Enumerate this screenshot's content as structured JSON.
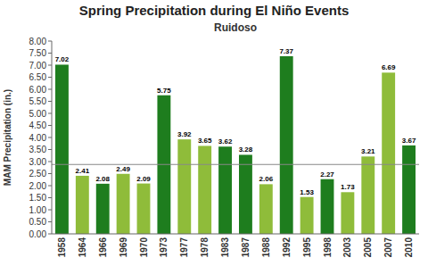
{
  "chart_data": {
    "type": "bar",
    "title": "Spring Precipitation during El Niño Events",
    "subtitle": "Ruidoso",
    "y_label": "MAM  Precipitation (in.)",
    "categories": [
      "1958",
      "1964",
      "1966",
      "1969",
      "1970",
      "1973",
      "1977",
      "1978",
      "1983",
      "1987",
      "1988",
      "1992",
      "1995",
      "1998",
      "2003",
      "2005",
      "2007",
      "2010"
    ],
    "values": [
      7.02,
      2.41,
      2.08,
      2.49,
      2.09,
      5.75,
      3.92,
      3.65,
      3.62,
      3.28,
      2.06,
      7.37,
      1.53,
      2.27,
      1.73,
      3.21,
      6.69,
      3.67
    ],
    "colors": [
      "#1e7d1e",
      "#8fbc3a",
      "#1e7d1e",
      "#8fbc3a",
      "#8fbc3a",
      "#1e7d1e",
      "#8fbc3a",
      "#8fbc3a",
      "#1e7d1e",
      "#1e7d1e",
      "#8fbc3a",
      "#1e7d1e",
      "#8fbc3a",
      "#1e7d1e",
      "#8fbc3a",
      "#8fbc3a",
      "#8fbc3a",
      "#1e7d1e"
    ],
    "reference_line": 2.88,
    "ylim": [
      0.0,
      8.0
    ],
    "yticks": [
      {
        "value": 0.0,
        "label": "0.00"
      },
      {
        "value": 0.5,
        "label": "0.50"
      },
      {
        "value": 1.0,
        "label": "1.00"
      },
      {
        "value": 1.5,
        "label": "1.50"
      },
      {
        "value": 2.0,
        "label": "2.00"
      },
      {
        "value": 2.5,
        "label": "2.50"
      },
      {
        "value": 3.0,
        "label": "3.00"
      },
      {
        "value": 3.5,
        "label": "3.50"
      },
      {
        "value": 4.0,
        "label": "4.00"
      },
      {
        "value": 4.5,
        "label": "4.50"
      },
      {
        "value": 5.0,
        "label": "5.00"
      },
      {
        "value": 5.5,
        "label": "5.50"
      },
      {
        "value": 6.0,
        "label": "6.00"
      },
      {
        "value": 6.5,
        "label": "6.50"
      },
      {
        "value": 7.0,
        "label": "7.00"
      },
      {
        "value": 7.5,
        "label": "7.50"
      },
      {
        "value": 8.0,
        "label": "8.00"
      }
    ],
    "grid": false,
    "data_labels": true
  }
}
